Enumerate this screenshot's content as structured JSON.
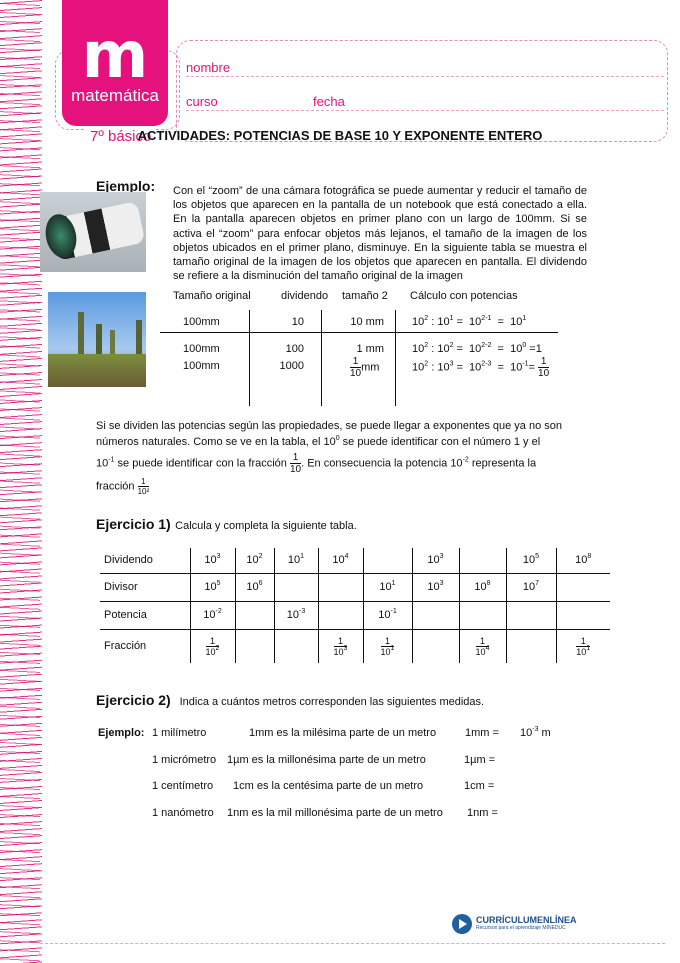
{
  "header": {
    "logo_letter": "m",
    "logo_subject": "matemática",
    "grade": "7º básico",
    "nombre_label": "nombre",
    "curso_label": "curso",
    "fecha_label": "fecha",
    "brand_color": "#e5127d"
  },
  "title": "ACTIVIDADES: POTENCIAS DE BASE 10 Y EXPONENTE ENTERO",
  "example": {
    "label": "Ejemplo:",
    "paragraph": "Con el “zoom” de una cámara fotográfica se puede aumentar y reducir el tamaño de los objetos que aparecen en la pantalla de un notebook que está conectado a ella. En la pantalla aparecen objetos en primer plano con un largo de 100mm. Si se activa el “zoom” para enfocar objetos más lejanos, el tamaño de la imagen de los objetos ubicados en el primer plano, disminuye. En la siguiente tabla se muestra el tamaño original de la imagen de los objetos que aparecen en pantalla. El dividendo se refiere a la disminución del tamaño original de la imagen",
    "table": {
      "headers": [
        "Tamaño original",
        "dividendo",
        "tamaño 2",
        "Cálculo con potencias"
      ],
      "rows": [
        {
          "original": "100mm",
          "dividendo": "10",
          "tamano": "10 mm"
        },
        {
          "original": "100mm",
          "dividendo": "100",
          "tamano": "1 mm"
        },
        {
          "original": "100mm",
          "dividendo": "1000",
          "tamano": "mm"
        }
      ]
    }
  },
  "explanation": {
    "l1": "Si se dividen las potencias según las propiedades, se puede llegar a exponentes que ya no son",
    "l2a": "números naturales. Como se ve en la tabla, el 10",
    "l2b": " se puede identificar con el número 1  y  el",
    "l3a": " se puede identificar con la fracción ",
    "l3b": ". En consecuencia la potencia 10",
    "l3c": "  representa la",
    "l4": "fracción"
  },
  "ejercicio1": {
    "label": "Ejercicio 1)",
    "instruction": "Calcula y completa la siguiente tabla.",
    "rows": [
      {
        "label": "Dividendo",
        "cells": [
          "3",
          "2",
          "1",
          "4",
          "",
          "3",
          "",
          "5",
          "8"
        ]
      },
      {
        "label": "Divisor",
        "cells": [
          "5",
          "6",
          "",
          "",
          "1",
          "3",
          "8",
          "7",
          ""
        ]
      },
      {
        "label": "Potencia",
        "cells": [
          "-2",
          "",
          "-3",
          "",
          "-1",
          "",
          "",
          "",
          ""
        ]
      },
      {
        "label": "Fracción",
        "cells": [
          "2",
          "",
          "",
          "3",
          "1",
          "",
          "4",
          "",
          "1"
        ]
      }
    ]
  },
  "ejercicio2": {
    "label": "Ejercicio 2)",
    "instruction": "Indica a cuántos  metros corresponden las siguientes medidas.",
    "example_label": "Ejemplo:",
    "items": [
      {
        "name": "1 milímetro",
        "desc": "1mm es la milésima parte de un metro",
        "unit": "1mm  =",
        "answer_exp": "-3",
        "answer_unit": " m"
      },
      {
        "name": "1 micrómetro",
        "desc": "1µm es la millonésima parte de un metro",
        "unit": "1µm  ="
      },
      {
        "name": "1 centímetro",
        "desc": "1cm es la centésima parte de un metro",
        "unit": "1cm  ="
      },
      {
        "name": "1 nanómetro",
        "desc": "1nm es la mil millonésima parte de un metro",
        "unit": "1nm  ="
      }
    ]
  },
  "footer": {
    "brand": "CURRÍCULUMENLÍNEA",
    "tagline": "Recursos para el aprendizaje MINEDUC"
  }
}
